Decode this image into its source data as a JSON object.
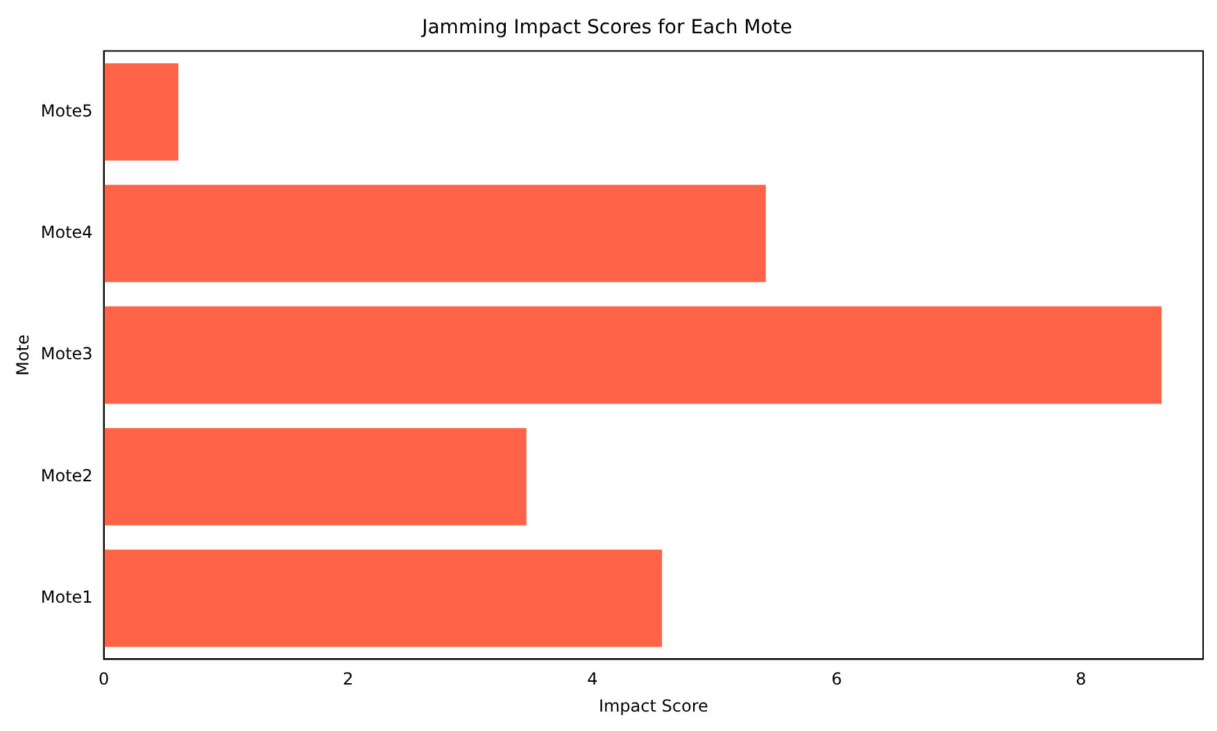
{
  "chart_data": {
    "type": "bar",
    "orientation": "horizontal",
    "title": "Jamming Impact Scores for Each Mote",
    "xlabel": "Impact Score",
    "ylabel": "Mote",
    "categories": [
      "Mote5",
      "Mote4",
      "Mote3",
      "Mote2",
      "Mote1"
    ],
    "values": [
      0.61,
      5.42,
      8.66,
      3.46,
      4.57
    ],
    "color": "#ff6347",
    "xlim": [
      0,
      9.0
    ],
    "xticks": [
      0,
      2,
      4,
      6,
      8
    ],
    "grid": false,
    "legend": false
  }
}
